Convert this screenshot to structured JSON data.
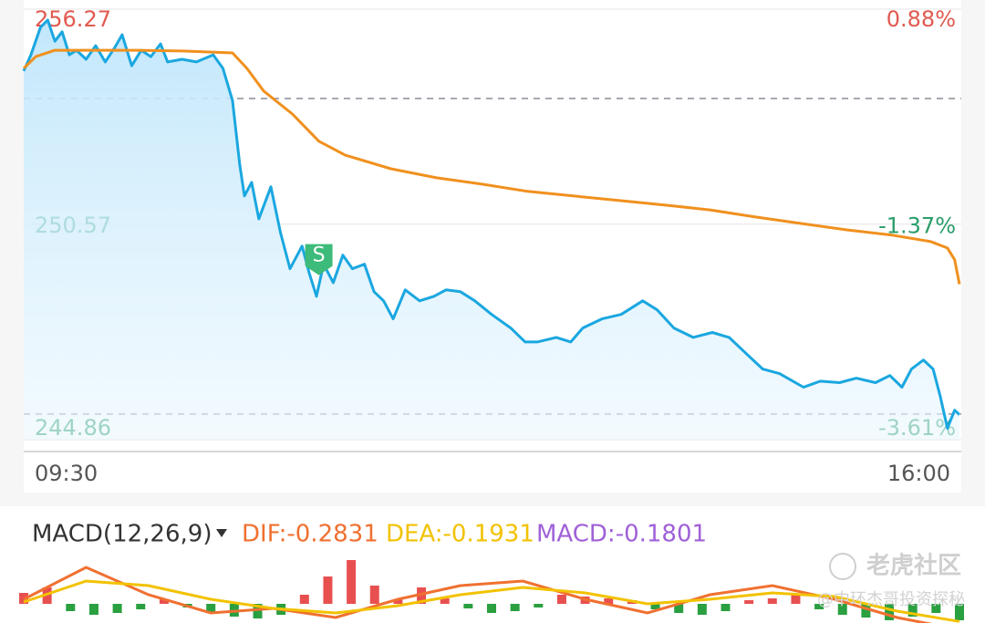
{
  "chart_data": [
    {
      "type": "line",
      "ylim": [
        244.86,
        256.27
      ],
      "yticks": [
        256.27,
        250.57,
        244.86
      ],
      "y2lim": [
        -3.61,
        0.88
      ],
      "y2ticks": [
        {
          "value": 0.88,
          "label": "0.88%"
        },
        {
          "value": -1.37,
          "label": "-1.37%"
        },
        {
          "value": -3.61,
          "label": "-3.61%"
        }
      ],
      "xlim": [
        0,
        390
      ],
      "xticks": [
        {
          "value": 0,
          "label": "09:30"
        },
        {
          "value": 390,
          "label": "16:00"
        }
      ],
      "reference_lines": [
        253.9,
        245.54
      ],
      "up_color": "#e05a50",
      "down_color": "#2a9d6a",
      "series": [
        {
          "color": "#1aa7e0",
          "area": true,
          "x": [
            0,
            3,
            7,
            10,
            13,
            16,
            19,
            22,
            26,
            30,
            34,
            38,
            41,
            45,
            49,
            53,
            57,
            60,
            66,
            72,
            79,
            83,
            87,
            90,
            92,
            95,
            98,
            103,
            107,
            111,
            116,
            119,
            122,
            125,
            129,
            133,
            137,
            142,
            146,
            150,
            154,
            159,
            165,
            171,
            176,
            182,
            188,
            195,
            203,
            209,
            214,
            222,
            228,
            233,
            241,
            249,
            258,
            264,
            271,
            279,
            287,
            294,
            302,
            308,
            315,
            325,
            332,
            340,
            347,
            355,
            361,
            366,
            370,
            375,
            379,
            382,
            385,
            388,
            390
          ],
          "values": [
            254.63,
            255.06,
            255.79,
            255.98,
            255.42,
            255.67,
            255.06,
            255.18,
            254.94,
            255.3,
            254.87,
            255.26,
            255.59,
            254.77,
            255.18,
            255.01,
            255.35,
            254.87,
            254.94,
            254.87,
            255.06,
            254.7,
            253.85,
            252.16,
            251.32,
            251.68,
            250.71,
            251.56,
            250.35,
            249.39,
            249.99,
            249.27,
            248.66,
            249.51,
            249.02,
            249.75,
            249.39,
            249.51,
            248.78,
            248.54,
            248.06,
            248.83,
            248.54,
            248.66,
            248.83,
            248.78,
            248.54,
            248.18,
            247.82,
            247.45,
            247.45,
            247.57,
            247.45,
            247.82,
            248.06,
            248.18,
            248.54,
            248.3,
            247.82,
            247.57,
            247.7,
            247.57,
            247.09,
            246.73,
            246.61,
            246.25,
            246.41,
            246.37,
            246.49,
            246.37,
            246.56,
            246.25,
            246.73,
            246.97,
            246.73,
            246.0,
            245.16,
            245.64,
            245.52
          ]
        },
        {
          "color": "#f0901e",
          "x": [
            0,
            5,
            13,
            28,
            47,
            66,
            87,
            93,
            100,
            112,
            123,
            134,
            153,
            172,
            191,
            210,
            229,
            248,
            267,
            286,
            305,
            324,
            343,
            362,
            378,
            385,
            388,
            390
          ],
          "values": [
            254.7,
            255.01,
            255.18,
            255.18,
            255.18,
            255.16,
            255.11,
            254.7,
            254.1,
            253.49,
            252.77,
            252.4,
            252.04,
            251.8,
            251.63,
            251.44,
            251.32,
            251.2,
            251.08,
            250.95,
            250.76,
            250.59,
            250.42,
            250.28,
            250.11,
            249.94,
            249.63,
            248.98
          ]
        }
      ],
      "annotations": [
        {
          "text": "S",
          "x": 123,
          "y": 249.27,
          "color": "#3dbb7a"
        }
      ]
    },
    {
      "type": "macd",
      "title": "MACD(12,26,9)",
      "xlim": [
        0,
        390
      ],
      "ylim": [
        -0.21,
        0.5
      ],
      "series": [
        {
          "label": "DIF:-0.2831",
          "color": "#f07030",
          "x": [
            0,
            26,
            52,
            78,
            104,
            130,
            156,
            182,
            208,
            234,
            260,
            286,
            312,
            338,
            364,
            390
          ],
          "values": [
            0.05,
            0.4,
            0.1,
            -0.1,
            -0.05,
            -0.15,
            0.05,
            0.2,
            0.25,
            0.05,
            -0.1,
            0.1,
            0.2,
            0.05,
            -0.15,
            -0.2831
          ]
        },
        {
          "label": "DEA:-0.1931",
          "color": "#f2c200",
          "x": [
            0,
            26,
            52,
            78,
            104,
            130,
            156,
            182,
            208,
            234,
            260,
            286,
            312,
            338,
            364,
            390
          ],
          "values": [
            0.02,
            0.25,
            0.2,
            0.05,
            -0.05,
            -0.1,
            -0.02,
            0.1,
            0.18,
            0.12,
            0.0,
            0.05,
            0.12,
            0.08,
            -0.08,
            -0.1931
          ]
        }
      ],
      "histogram": {
        "label": "MACD:-0.1801",
        "label_color": "#a060d8",
        "up_color": "#e85050",
        "down_color": "#2aa040",
        "x": [
          0,
          9.75,
          19.5,
          29.25,
          39,
          48.75,
          58.5,
          68.25,
          78,
          87.75,
          97.5,
          107.25,
          117,
          126.75,
          136.5,
          146.25,
          156,
          165.75,
          175.5,
          185.25,
          195,
          204.75,
          214.5,
          224.25,
          234,
          243.75,
          253.5,
          263.25,
          273,
          282.75,
          292.5,
          302.25,
          312,
          321.75,
          331.5,
          341.25,
          351,
          360.75,
          370.5,
          380.25,
          390
        ],
        "values": [
          0.12,
          0.18,
          -0.08,
          -0.12,
          -0.1,
          -0.06,
          0.05,
          -0.04,
          -0.1,
          -0.14,
          -0.16,
          -0.12,
          0.1,
          0.3,
          0.48,
          0.2,
          0.05,
          0.18,
          0.06,
          -0.05,
          -0.1,
          -0.08,
          -0.04,
          0.1,
          0.08,
          0.06,
          0.04,
          -0.06,
          -0.1,
          -0.12,
          -0.08,
          0.04,
          0.06,
          0.1,
          -0.06,
          -0.12,
          -0.15,
          -0.18,
          -0.14,
          -0.1,
          -0.1801
        ]
      }
    }
  ],
  "watermark": "老虎社区",
  "credit": "@中环杰哥投资探秘"
}
